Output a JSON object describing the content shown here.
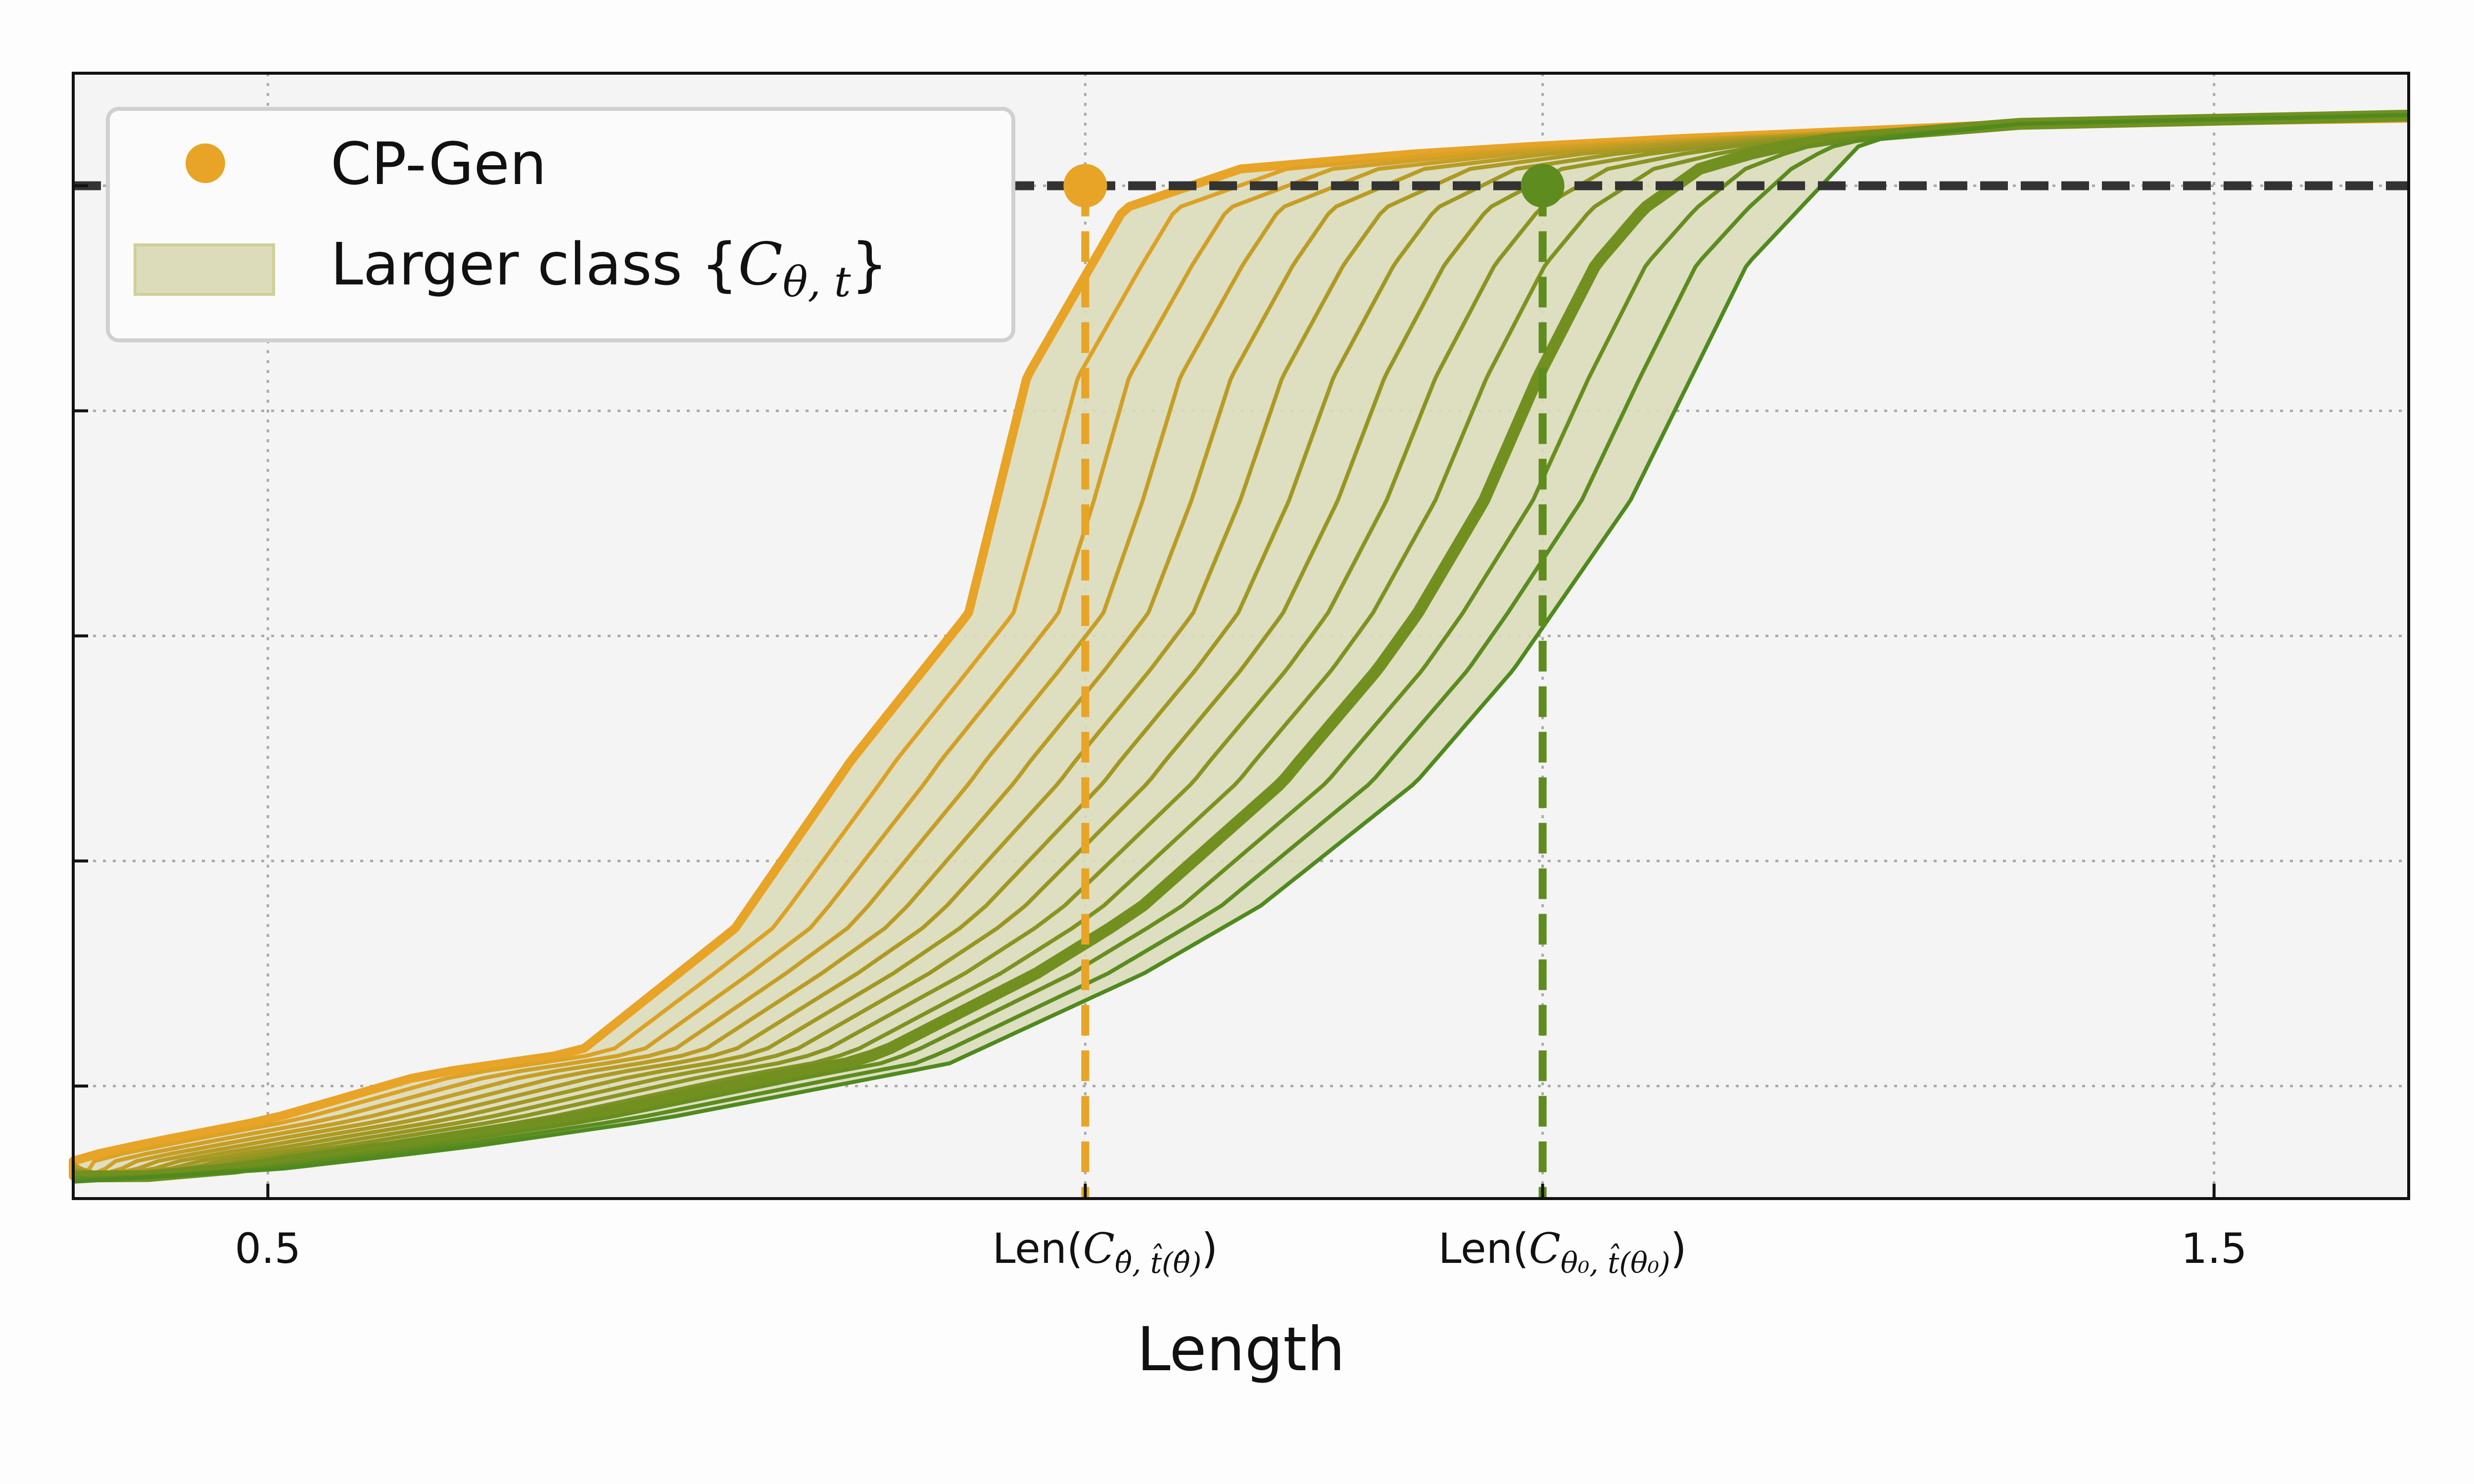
{
  "chart_data": {
    "type": "line",
    "title": "",
    "xlabel": "Length",
    "ylabel": "",
    "xlim": [
      0.4,
      1.6
    ],
    "ylim": [
      0,
      1
    ],
    "grid": true,
    "legend_position": "top-left",
    "reference_line_y": 0.9,
    "x_ticks": [
      {
        "value": 0.5,
        "label": "0.5"
      },
      {
        "value": 1.5,
        "label": "1.5"
      }
    ],
    "y_ticks": [
      0.1,
      0.3,
      0.5,
      0.7,
      0.9
    ],
    "legend": {
      "point_label": "CP-Gen",
      "band_label_prefix": "Larger class {",
      "band_label_C": "C",
      "band_label_sub": "θ, t",
      "band_label_suffix": "}"
    },
    "markers": [
      {
        "name": "CP-Gen",
        "x": 0.92,
        "y": 0.9,
        "color": "#e8a427",
        "label_prefix": "Len(",
        "label_C": "C",
        "label_sub": "θ̂, t̂(θ̂)",
        "label_suffix": ")"
      },
      {
        "name": "theta0",
        "x": 1.155,
        "y": 0.9,
        "color": "#5e8c1e",
        "label_prefix": "Len(",
        "label_C": "C",
        "label_sub": "θ₀, t̂(θ₀)",
        "label_suffix": ")"
      }
    ],
    "colors": {
      "start": "#e8a427",
      "end": "#4f8a1e",
      "band_fill": "#dcdcbb",
      "reference_line": "#333333",
      "background": "#f4f4f4",
      "grid": "#aaaaaa"
    },
    "curve_family": {
      "count": 14,
      "highlighted_index": 10,
      "start_curve": {
        "x": [
          0.4,
          0.44,
          0.5,
          0.58,
          0.66,
          0.74,
          0.8,
          0.86,
          0.89,
          0.94,
          1.0,
          1.1,
          1.2,
          1.4,
          1.6
        ],
        "y": [
          0.035,
          0.05,
          0.07,
          0.11,
          0.13,
          0.24,
          0.39,
          0.52,
          0.73,
          0.88,
          0.915,
          0.93,
          0.94,
          0.955,
          0.96
        ]
      },
      "end_curve": {
        "x": [
          0.4,
          0.5,
          0.6,
          0.7,
          0.85,
          0.95,
          1.01,
          1.09,
          1.14,
          1.2,
          1.26,
          1.32,
          1.4,
          1.5,
          1.6
        ],
        "y": [
          0.015,
          0.025,
          0.045,
          0.07,
          0.12,
          0.2,
          0.26,
          0.37,
          0.47,
          0.62,
          0.83,
          0.94,
          0.955,
          0.96,
          0.963
        ]
      }
    }
  }
}
